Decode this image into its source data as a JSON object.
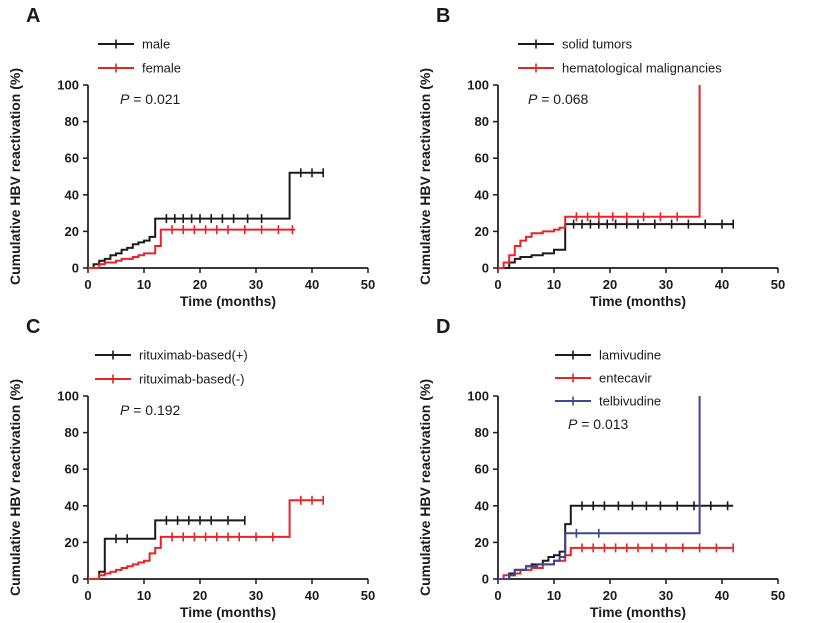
{
  "figure": {
    "xlabel": "Time (months)",
    "ylabel": "Cumulative HBV reactivation (%)"
  },
  "chart_data": [
    {
      "panel": "A",
      "letter": "A",
      "type": "line",
      "subtype": "kaplan-meier-step",
      "xlabel": "Time (months)",
      "ylabel": "Cumulative HBV reactivation (%)",
      "xlim": [
        0,
        50
      ],
      "ylim": [
        0,
        100
      ],
      "xticks": [
        0,
        10,
        20,
        30,
        40,
        50
      ],
      "yticks": [
        0,
        20,
        40,
        60,
        80,
        100
      ],
      "legend_position": "top-left",
      "annotation": {
        "p_symbol": "P",
        "p_rest": " =  0.021"
      },
      "series": [
        {
          "name": "male",
          "color": "#1b1b1b",
          "steps": [
            [
              0,
              0
            ],
            [
              1,
              2
            ],
            [
              2,
              4
            ],
            [
              3,
              5
            ],
            [
              4,
              7
            ],
            [
              5,
              8
            ],
            [
              6,
              10
            ],
            [
              7,
              11
            ],
            [
              8,
              13
            ],
            [
              9,
              14
            ],
            [
              10,
              15
            ],
            [
              11,
              17
            ],
            [
              12,
              27
            ],
            [
              36,
              52
            ],
            [
              42,
              52
            ]
          ],
          "censor_marks": [
            [
              14,
              27
            ],
            [
              15.5,
              27
            ],
            [
              17,
              27
            ],
            [
              18.5,
              27
            ],
            [
              20,
              27
            ],
            [
              22,
              27
            ],
            [
              24,
              27
            ],
            [
              26,
              27
            ],
            [
              28.5,
              27
            ],
            [
              31,
              27
            ],
            [
              38,
              52
            ],
            [
              40,
              52
            ],
            [
              42,
              52
            ]
          ]
        },
        {
          "name": "female",
          "color": "#e52528",
          "steps": [
            [
              0,
              0
            ],
            [
              2,
              2
            ],
            [
              3,
              3
            ],
            [
              5,
              4
            ],
            [
              6,
              5
            ],
            [
              8,
              6
            ],
            [
              9,
              7
            ],
            [
              10,
              8
            ],
            [
              12,
              12
            ],
            [
              13,
              21
            ],
            [
              37,
              21
            ]
          ],
          "censor_marks": [
            [
              15,
              21
            ],
            [
              17,
              21
            ],
            [
              19,
              21
            ],
            [
              21,
              21
            ],
            [
              23,
              21
            ],
            [
              25,
              21
            ],
            [
              28,
              21
            ],
            [
              31,
              21
            ],
            [
              34,
              21
            ],
            [
              36.5,
              21
            ]
          ]
        }
      ]
    },
    {
      "panel": "B",
      "letter": "B",
      "type": "line",
      "subtype": "kaplan-meier-step",
      "xlabel": "Time (months)",
      "ylabel": "Cumulative HBV reactivation (%)",
      "xlim": [
        0,
        50
      ],
      "ylim": [
        0,
        100
      ],
      "xticks": [
        0,
        10,
        20,
        30,
        40,
        50
      ],
      "yticks": [
        0,
        20,
        40,
        60,
        80,
        100
      ],
      "legend_position": "top-left",
      "annotation": {
        "p_symbol": "P",
        "p_rest": " =  0.068"
      },
      "series": [
        {
          "name": "solid tumors",
          "color": "#1b1b1b",
          "steps": [
            [
              0,
              0
            ],
            [
              2,
              3
            ],
            [
              3,
              5
            ],
            [
              4,
              6
            ],
            [
              6,
              7
            ],
            [
              8,
              8
            ],
            [
              10,
              10
            ],
            [
              12,
              24
            ],
            [
              42,
              24
            ]
          ],
          "censor_marks": [
            [
              13.5,
              24
            ],
            [
              15,
              24
            ],
            [
              16.5,
              24
            ],
            [
              18,
              24
            ],
            [
              19.5,
              24
            ],
            [
              21,
              24
            ],
            [
              23,
              24
            ],
            [
              25,
              24
            ],
            [
              28,
              24
            ],
            [
              31,
              24
            ],
            [
              34,
              24
            ],
            [
              37,
              24
            ],
            [
              40,
              24
            ],
            [
              42,
              24
            ]
          ]
        },
        {
          "name": "hematological malignancies",
          "color": "#e52528",
          "steps": [
            [
              0,
              0
            ],
            [
              1,
              3
            ],
            [
              2,
              7
            ],
            [
              3,
              12
            ],
            [
              4,
              15
            ],
            [
              5,
              17
            ],
            [
              6,
              19
            ],
            [
              8,
              20
            ],
            [
              10,
              21
            ],
            [
              11,
              22
            ],
            [
              12,
              28
            ],
            [
              36,
              100
            ]
          ],
          "censor_marks": [
            [
              14,
              28
            ],
            [
              16,
              28
            ],
            [
              18,
              28
            ],
            [
              20.5,
              28
            ],
            [
              23,
              28
            ],
            [
              26,
              28
            ],
            [
              29,
              28
            ],
            [
              32,
              28
            ]
          ]
        }
      ]
    },
    {
      "panel": "C",
      "letter": "C",
      "type": "line",
      "subtype": "kaplan-meier-step",
      "xlabel": "Time (months)",
      "ylabel": "Cumulative HBV reactivation (%)",
      "xlim": [
        0,
        50
      ],
      "ylim": [
        0,
        100
      ],
      "xticks": [
        0,
        10,
        20,
        30,
        40,
        50
      ],
      "yticks": [
        0,
        20,
        40,
        60,
        80,
        100
      ],
      "legend_position": "top-left",
      "annotation": {
        "p_symbol": "P",
        "p_rest": " =  0.192"
      },
      "series": [
        {
          "name": "rituximab-based(+)",
          "color": "#1b1b1b",
          "steps": [
            [
              0,
              0
            ],
            [
              2,
              4
            ],
            [
              3,
              22
            ],
            [
              12,
              32
            ],
            [
              28,
              32
            ]
          ],
          "censor_marks": [
            [
              5,
              22
            ],
            [
              7,
              22
            ],
            [
              14,
              32
            ],
            [
              16,
              32
            ],
            [
              18,
              32
            ],
            [
              20,
              32
            ],
            [
              22,
              32
            ],
            [
              25,
              32
            ],
            [
              28,
              32
            ]
          ]
        },
        {
          "name": "rituximab-based(-)",
          "color": "#e52528",
          "steps": [
            [
              0,
              0
            ],
            [
              2,
              2
            ],
            [
              3,
              3
            ],
            [
              4,
              4
            ],
            [
              5,
              5
            ],
            [
              6,
              6
            ],
            [
              7,
              7
            ],
            [
              8,
              8
            ],
            [
              9,
              9
            ],
            [
              10,
              10
            ],
            [
              11,
              14
            ],
            [
              12,
              17
            ],
            [
              13,
              23
            ],
            [
              36,
              43
            ],
            [
              42,
              43
            ]
          ],
          "censor_marks": [
            [
              15,
              23
            ],
            [
              17,
              23
            ],
            [
              19,
              23
            ],
            [
              21,
              23
            ],
            [
              23,
              23
            ],
            [
              25,
              23
            ],
            [
              27,
              23
            ],
            [
              30,
              23
            ],
            [
              33,
              23
            ],
            [
              38,
              43
            ],
            [
              40,
              43
            ],
            [
              42,
              43
            ]
          ]
        }
      ]
    },
    {
      "panel": "D",
      "letter": "D",
      "type": "line",
      "subtype": "kaplan-meier-step",
      "xlabel": "Time (months)",
      "ylabel": "Cumulative HBV reactivation (%)",
      "xlim": [
        0,
        50
      ],
      "ylim": [
        0,
        100
      ],
      "xticks": [
        0,
        10,
        20,
        30,
        40,
        50
      ],
      "yticks": [
        0,
        20,
        40,
        60,
        80,
        100
      ],
      "legend_position": "top-left",
      "annotation": {
        "p_symbol": "P",
        "p_rest": " = 0.013"
      },
      "series": [
        {
          "name": "lamivudine",
          "color": "#1b1b1b",
          "steps": [
            [
              0,
              0
            ],
            [
              2,
              3
            ],
            [
              3,
              5
            ],
            [
              5,
              7
            ],
            [
              6,
              8
            ],
            [
              8,
              10
            ],
            [
              9,
              12
            ],
            [
              10,
              13
            ],
            [
              11,
              15
            ],
            [
              12,
              30
            ],
            [
              13,
              40
            ],
            [
              42,
              40
            ]
          ],
          "censor_marks": [
            [
              15,
              40
            ],
            [
              17,
              40
            ],
            [
              19,
              40
            ],
            [
              21.5,
              40
            ],
            [
              24,
              40
            ],
            [
              26.5,
              40
            ],
            [
              29,
              40
            ],
            [
              32,
              40
            ],
            [
              35,
              40
            ],
            [
              38,
              40
            ],
            [
              41,
              40
            ]
          ]
        },
        {
          "name": "entecavir",
          "color": "#e52528",
          "steps": [
            [
              0,
              0
            ],
            [
              1,
              2
            ],
            [
              3,
              3
            ],
            [
              4,
              5
            ],
            [
              6,
              6
            ],
            [
              8,
              8
            ],
            [
              10,
              10
            ],
            [
              12,
              13
            ],
            [
              13,
              17
            ],
            [
              42,
              17
            ]
          ],
          "censor_marks": [
            [
              15,
              17
            ],
            [
              17,
              17
            ],
            [
              19,
              17
            ],
            [
              21,
              17
            ],
            [
              23,
              17
            ],
            [
              25,
              17
            ],
            [
              27.5,
              17
            ],
            [
              30,
              17
            ],
            [
              33,
              17
            ],
            [
              36,
              17
            ],
            [
              39,
              17
            ],
            [
              42,
              17
            ]
          ]
        },
        {
          "name": "telbivudine",
          "color": "#3f4795",
          "steps": [
            [
              0,
              0
            ],
            [
              2,
              2
            ],
            [
              3,
              5
            ],
            [
              5,
              7
            ],
            [
              7,
              8
            ],
            [
              10,
              10
            ],
            [
              11,
              12
            ],
            [
              12,
              25
            ],
            [
              36,
              100
            ]
          ],
          "censor_marks": [
            [
              14,
              25
            ],
            [
              18,
              25
            ]
          ]
        }
      ]
    }
  ]
}
